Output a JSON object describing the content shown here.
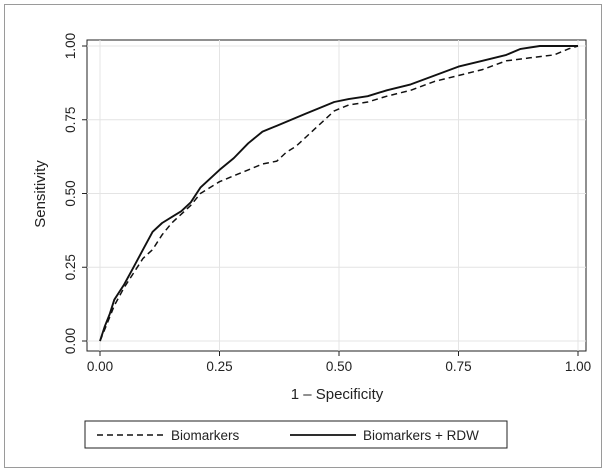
{
  "chart_data": {
    "type": "line",
    "title": "",
    "xlabel": "1 – Specificity",
    "ylabel": "Sensitivity",
    "xlim": [
      0,
      1
    ],
    "ylim": [
      0,
      1
    ],
    "x_ticks": [
      "0.00",
      "0.25",
      "0.50",
      "0.75",
      "1.00"
    ],
    "y_ticks": [
      "0.00",
      "0.25",
      "0.50",
      "0.75",
      "1.00"
    ],
    "grid": true,
    "legend_position": "bottom",
    "series": [
      {
        "name": "Biomarkers",
        "style": "dashed",
        "color": "#111111",
        "points": [
          [
            0,
            0
          ],
          [
            0.01,
            0.04
          ],
          [
            0.02,
            0.08
          ],
          [
            0.03,
            0.12
          ],
          [
            0.05,
            0.18
          ],
          [
            0.07,
            0.23
          ],
          [
            0.09,
            0.28
          ],
          [
            0.11,
            0.31
          ],
          [
            0.13,
            0.36
          ],
          [
            0.15,
            0.4
          ],
          [
            0.17,
            0.43
          ],
          [
            0.19,
            0.46
          ],
          [
            0.21,
            0.5
          ],
          [
            0.23,
            0.52
          ],
          [
            0.25,
            0.54
          ],
          [
            0.28,
            0.56
          ],
          [
            0.31,
            0.58
          ],
          [
            0.34,
            0.6
          ],
          [
            0.37,
            0.61
          ],
          [
            0.39,
            0.64
          ],
          [
            0.41,
            0.66
          ],
          [
            0.43,
            0.69
          ],
          [
            0.45,
            0.72
          ],
          [
            0.47,
            0.75
          ],
          [
            0.49,
            0.78
          ],
          [
            0.52,
            0.8
          ],
          [
            0.56,
            0.81
          ],
          [
            0.6,
            0.83
          ],
          [
            0.65,
            0.85
          ],
          [
            0.7,
            0.88
          ],
          [
            0.75,
            0.9
          ],
          [
            0.8,
            0.92
          ],
          [
            0.85,
            0.95
          ],
          [
            0.9,
            0.96
          ],
          [
            0.95,
            0.97
          ],
          [
            0.98,
            0.99
          ],
          [
            1,
            1
          ]
        ]
      },
      {
        "name": "Biomarkers + RDW",
        "style": "solid",
        "color": "#111111",
        "points": [
          [
            0,
            0
          ],
          [
            0.01,
            0.05
          ],
          [
            0.02,
            0.09
          ],
          [
            0.03,
            0.14
          ],
          [
            0.05,
            0.19
          ],
          [
            0.07,
            0.25
          ],
          [
            0.09,
            0.31
          ],
          [
            0.11,
            0.37
          ],
          [
            0.13,
            0.4
          ],
          [
            0.15,
            0.42
          ],
          [
            0.17,
            0.44
          ],
          [
            0.19,
            0.47
          ],
          [
            0.21,
            0.52
          ],
          [
            0.23,
            0.55
          ],
          [
            0.25,
            0.58
          ],
          [
            0.28,
            0.62
          ],
          [
            0.31,
            0.67
          ],
          [
            0.34,
            0.71
          ],
          [
            0.37,
            0.73
          ],
          [
            0.4,
            0.75
          ],
          [
            0.43,
            0.77
          ],
          [
            0.46,
            0.79
          ],
          [
            0.49,
            0.81
          ],
          [
            0.52,
            0.82
          ],
          [
            0.56,
            0.83
          ],
          [
            0.6,
            0.85
          ],
          [
            0.65,
            0.87
          ],
          [
            0.7,
            0.9
          ],
          [
            0.75,
            0.93
          ],
          [
            0.8,
            0.95
          ],
          [
            0.85,
            0.97
          ],
          [
            0.88,
            0.99
          ],
          [
            0.92,
            1.0
          ],
          [
            0.96,
            1.0
          ],
          [
            1,
            1
          ]
        ]
      }
    ],
    "legend": [
      {
        "label": "Biomarkers",
        "style": "dashed"
      },
      {
        "label": "Biomarkers + RDW",
        "style": "solid"
      }
    ]
  }
}
